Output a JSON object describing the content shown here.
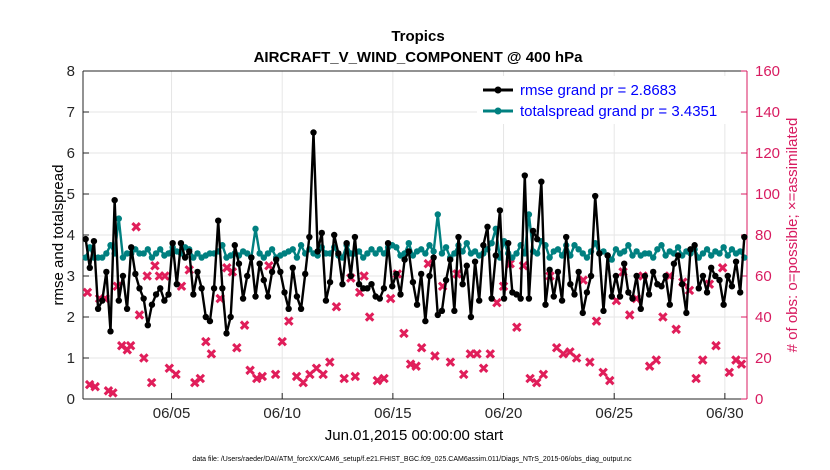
{
  "chart_data": {
    "type": "line",
    "title": "Tropics",
    "subtitle": "AIRCRAFT_V_WIND_COMPONENT @ 400 hPa",
    "xlabel": "Jun.01,2015 00:00:00 start",
    "ylabel_left": "rmse and totalspread",
    "ylabel_right": "# of obs: o=possible; ×=assimilated",
    "footnote": "data file: /Users/raeder/DAI/ATM_forcXX/CAM6_setup/f.e21.FHIST_BGC.f09_025.CAM6assim.011/Diags_NTrS_2015-06/obs_diag_output.nc",
    "x_ticks": [
      {
        "value": 5,
        "label": "06/05"
      },
      {
        "value": 10,
        "label": "06/10"
      },
      {
        "value": 15,
        "label": "06/15"
      },
      {
        "value": 20,
        "label": "06/20"
      },
      {
        "value": 25,
        "label": "06/25"
      },
      {
        "value": 30,
        "label": "06/30"
      }
    ],
    "xlim": [
      1,
      31
    ],
    "ylim_left": [
      0,
      8
    ],
    "yticks_left": [
      "0",
      "1",
      "2",
      "3",
      "4",
      "5",
      "6",
      "7",
      "8"
    ],
    "ylim_right": [
      0,
      160
    ],
    "yticks_right": [
      "0",
      "20",
      "40",
      "60",
      "80",
      "100",
      "120",
      "140",
      "160"
    ],
    "legend": [
      {
        "name": "rmse grand pr = 2.8683",
        "color": "#000000"
      },
      {
        "name": "totalspread grand pr = 3.4351",
        "color": "#008080"
      }
    ],
    "series": [
      {
        "name": "rmse",
        "color": "#000000",
        "axis": "left",
        "values": [
          3.9,
          3.2,
          3.85,
          2.2,
          2.4,
          3.1,
          1.65,
          4.85,
          2.4,
          3.0,
          2.2,
          3.7,
          3.05,
          2.7,
          2.45,
          1.8,
          2.3,
          2.55,
          2.7,
          2.4,
          2.55,
          3.8,
          2.8,
          3.8,
          3.45,
          3.6,
          2.55,
          3.1,
          2.7,
          2.0,
          1.9,
          2.7,
          4.35,
          2.7,
          1.6,
          2.0,
          3.75,
          3.3,
          2.45,
          3.0,
          3.45,
          2.5,
          3.3,
          2.9,
          2.5,
          3.1,
          3.4,
          3.1,
          2.6,
          2.2,
          3.2,
          2.5,
          2.2,
          3.05,
          3.95,
          6.5,
          3.6,
          4.05,
          2.4,
          2.85,
          4.0,
          3.55,
          2.8,
          3.8,
          3.0,
          3.95,
          2.8,
          2.7,
          2.7,
          2.8,
          2.5,
          2.45,
          2.7,
          3.8,
          2.75,
          3.05,
          2.55,
          3.4,
          3.6,
          2.85,
          2.3,
          3.05,
          1.9,
          3.0,
          3.45,
          2.05,
          2.15,
          2.9,
          3.4,
          2.15,
          3.95,
          2.8,
          3.25,
          2.0,
          3.35,
          2.4,
          3.75,
          4.2,
          2.45,
          3.5,
          4.6,
          2.45,
          3.8,
          2.6,
          2.55,
          2.45,
          5.45,
          2.45,
          4.1,
          3.9,
          5.3,
          2.3,
          3.15,
          2.5,
          3.1,
          2.4,
          3.95,
          2.8,
          2.55,
          3.1,
          2.1,
          2.6,
          3.0,
          4.95,
          3.55,
          2.15,
          3.5,
          2.5,
          3.0,
          2.5,
          3.3,
          2.6,
          2.45,
          3.0,
          2.2,
          3.0,
          2.55,
          3.1,
          2.8,
          2.75,
          3.0,
          2.3,
          3.3,
          3.5,
          2.8,
          2.1,
          3.65,
          3.75,
          2.7,
          3.0,
          2.6,
          3.2,
          3.0,
          2.9,
          2.3,
          3.0,
          2.75,
          3.35,
          2.6,
          3.95
        ]
      },
      {
        "name": "totalspread",
        "color": "#008080",
        "axis": "left",
        "values": [
          3.45,
          3.7,
          3.45,
          3.45,
          3.45,
          3.55,
          3.75,
          3.55,
          4.4,
          3.45,
          3.55,
          3.55,
          3.65,
          3.55,
          3.55,
          3.65,
          3.45,
          3.55,
          3.65,
          3.5,
          3.55,
          3.7,
          3.6,
          3.55,
          3.7,
          3.65,
          3.45,
          3.55,
          3.45,
          3.5,
          3.55,
          3.55,
          3.6,
          3.75,
          3.45,
          3.5,
          3.55,
          3.5,
          3.6,
          3.55,
          3.45,
          4.15,
          3.55,
          3.45,
          3.55,
          3.65,
          3.45,
          3.5,
          3.55,
          3.6,
          3.65,
          3.45,
          3.75,
          3.55,
          3.65,
          3.55,
          3.5,
          3.7,
          3.55,
          3.55,
          3.7,
          3.5,
          3.45,
          3.75,
          3.55,
          3.55,
          3.6,
          3.45,
          3.55,
          3.65,
          3.55,
          3.65,
          3.55,
          3.7,
          3.75,
          3.7,
          3.5,
          3.55,
          3.8,
          3.5,
          3.6,
          3.65,
          3.55,
          3.75,
          3.6,
          4.5,
          3.55,
          3.7,
          3.45,
          3.55,
          3.75,
          3.6,
          3.8,
          3.55,
          3.6,
          3.5,
          3.55,
          3.65,
          3.8,
          4.15,
          3.45,
          3.85,
          3.55,
          3.45,
          3.55,
          3.75,
          3.55,
          4.5,
          3.6,
          3.55,
          3.85,
          3.75,
          3.45,
          3.6,
          3.65,
          3.5,
          3.75,
          3.5,
          3.75,
          3.65,
          3.55,
          3.45,
          3.6,
          3.8,
          3.55,
          3.6,
          3.5,
          3.4,
          3.65,
          3.55,
          3.6,
          3.75,
          3.5,
          3.6,
          3.5,
          3.55,
          3.55,
          3.45,
          3.65,
          3.75,
          3.5,
          3.6,
          3.55,
          3.7,
          3.5,
          3.6,
          3.55,
          3.65,
          3.45,
          3.55,
          3.65,
          3.5,
          3.6,
          3.55,
          3.7,
          3.5,
          3.65,
          3.55,
          3.6,
          3.45
        ]
      },
      {
        "name": "# obs possible / assimilated",
        "color": "#e01e5a",
        "axis": "right",
        "marker": "x-filled",
        "x": [
          1.2,
          1.3,
          1.55,
          1.75,
          2.0,
          2.15,
          2.35,
          2.55,
          2.75,
          3.0,
          3.15,
          3.4,
          3.55,
          3.75,
          3.9,
          4.1,
          4.25,
          4.45,
          4.7,
          4.9,
          5.2,
          5.45,
          5.8,
          6.05,
          6.3,
          6.55,
          6.8,
          7.2,
          7.5,
          7.75,
          7.95,
          8.3,
          8.55,
          8.85,
          9.1,
          9.4,
          9.7,
          10.0,
          10.3,
          10.65,
          10.95,
          11.25,
          11.55,
          11.85,
          12.15,
          12.45,
          12.8,
          13.1,
          13.3,
          13.5,
          13.7,
          13.95,
          14.3,
          14.6,
          14.9,
          15.2,
          15.5,
          15.8,
          16.05,
          16.3,
          16.6,
          16.9,
          17.25,
          17.6,
          17.9,
          18.2,
          18.5,
          18.8,
          19.1,
          19.4,
          19.7,
          20.0,
          20.3,
          20.6,
          20.9,
          21.2,
          21.5,
          21.8,
          22.1,
          22.4,
          22.7,
          23.0,
          23.3,
          23.6,
          23.9,
          24.2,
          24.5,
          24.8,
          25.1,
          25.4,
          25.7,
          26.0,
          26.3,
          26.6,
          26.9,
          27.2,
          27.5,
          27.8,
          28.1,
          28.4,
          28.7,
          29.0,
          29.3,
          29.6,
          29.9,
          30.2,
          30.5,
          30.75
        ],
        "values": [
          52,
          7,
          6,
          49,
          49,
          4,
          3,
          55,
          26,
          24,
          26,
          84,
          41,
          20,
          60,
          8,
          65,
          60,
          60,
          15,
          12,
          55,
          63,
          8,
          10,
          28,
          22,
          49,
          64,
          62,
          25,
          36,
          14,
          10,
          11,
          65,
          12,
          28,
          38,
          11,
          8,
          12,
          15,
          12,
          18,
          45,
          10,
          59,
          11,
          52,
          60,
          40,
          9,
          10,
          49,
          61,
          32,
          17,
          16,
          25,
          66,
          21,
          55,
          18,
          61,
          12,
          22,
          22,
          15,
          22,
          47,
          55,
          66,
          35,
          65,
          10,
          8,
          12,
          60,
          25,
          22,
          23,
          20,
          58,
          18,
          38,
          13,
          9,
          48,
          62,
          41,
          49,
          60,
          16,
          19,
          40,
          60,
          34,
          57,
          53,
          10,
          19,
          56,
          26,
          64,
          13,
          19,
          17
        ]
      }
    ]
  }
}
